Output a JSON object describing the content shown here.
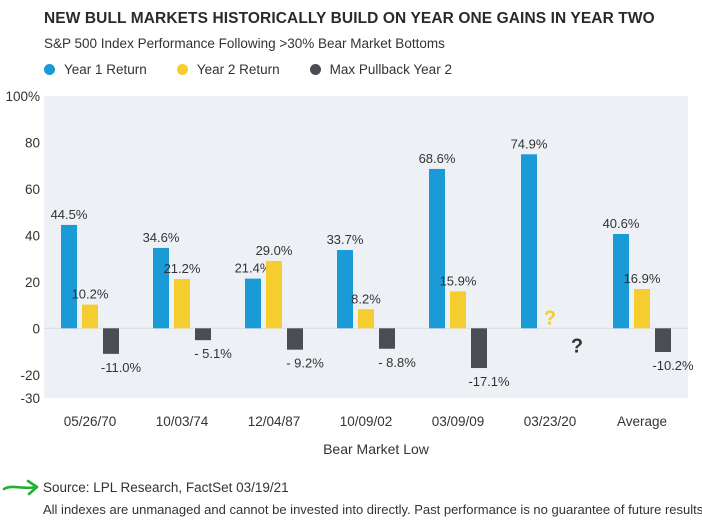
{
  "title": "NEW BULL MARKETS HISTORICALLY BUILD ON YEAR ONE GAINS IN YEAR TWO",
  "subtitle": "S&P 500 Index Performance Following >30% Bear Market Bottoms",
  "source": "Source: LPL Research, FactSet   03/19/21",
  "note": "All indexes are unmanaged and cannot be invested into directly. Past performance is no guarantee of future results.",
  "colors": {
    "year1": "#1a9ad6",
    "year2": "#f5cd2e",
    "pullback": "#4a4e54",
    "plot_bg": "#edf1f6",
    "arrow": "#22b035"
  },
  "chart_data": {
    "type": "bar",
    "xlabel": "Bear Market Low",
    "ylabel": "",
    "ylim": [
      -30,
      100
    ],
    "yticks": [
      -30,
      -20,
      0,
      20,
      40,
      60,
      80,
      100
    ],
    "ytick_labels": [
      "-30",
      "-20",
      "0",
      "20",
      "40",
      "60",
      "80",
      "100%"
    ],
    "categories": [
      "05/26/70",
      "10/03/74",
      "12/04/87",
      "10/09/02",
      "03/09/09",
      "03/23/20",
      "Average"
    ],
    "series": [
      {
        "name": "Year 1 Return",
        "values": [
          44.5,
          34.6,
          21.4,
          33.7,
          68.6,
          74.9,
          40.6
        ],
        "labels": [
          "44.5%",
          "34.6%",
          "21.4%",
          "33.7%",
          "68.6%",
          "74.9%",
          "40.6%"
        ]
      },
      {
        "name": "Year 2 Return",
        "values": [
          10.2,
          21.2,
          29.0,
          8.2,
          15.9,
          null,
          16.9
        ],
        "labels": [
          "10.2%",
          "21.2%",
          "29.0%",
          "8.2%",
          "15.9%",
          "?",
          "16.9%"
        ]
      },
      {
        "name": "Max Pullback Year 2",
        "values": [
          -11.0,
          -5.1,
          -9.2,
          -8.8,
          -17.1,
          null,
          -10.2
        ],
        "labels": [
          "-11.0%",
          "- 5.1%",
          "- 9.2%",
          "- 8.8%",
          "-17.1%",
          "?",
          "-10.2%"
        ]
      }
    ],
    "legend_position": "top-left",
    "grid": false
  }
}
